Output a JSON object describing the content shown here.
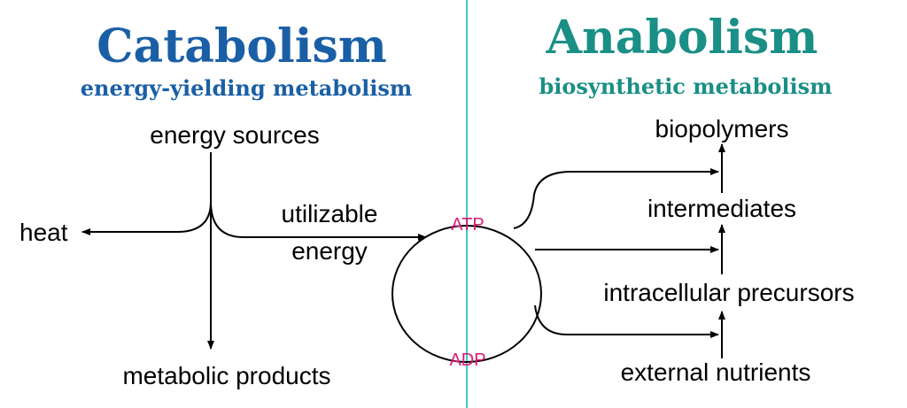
{
  "catabolism": {
    "title": "Catabolism",
    "subtitle": "energy-yielding metabolism",
    "color": "#1a5fa6"
  },
  "anabolism": {
    "title": "Anabolism",
    "subtitle": "biosynthetic metabolism",
    "color": "#1a8f86"
  },
  "divider_color": "#3fc6d6",
  "cycle_color": "#d81b78",
  "labels": {
    "energy_sources": "energy sources",
    "heat": "heat",
    "utilizable": "utilizable",
    "energy": "energy",
    "metabolic_products": "metabolic products",
    "atp": "ATP",
    "adp": "ADP",
    "biopolymers": "biopolymers",
    "intermediates": "intermediates",
    "intracellular_precursors": "intracellular precursors",
    "external_nutrients": "external nutrients"
  }
}
